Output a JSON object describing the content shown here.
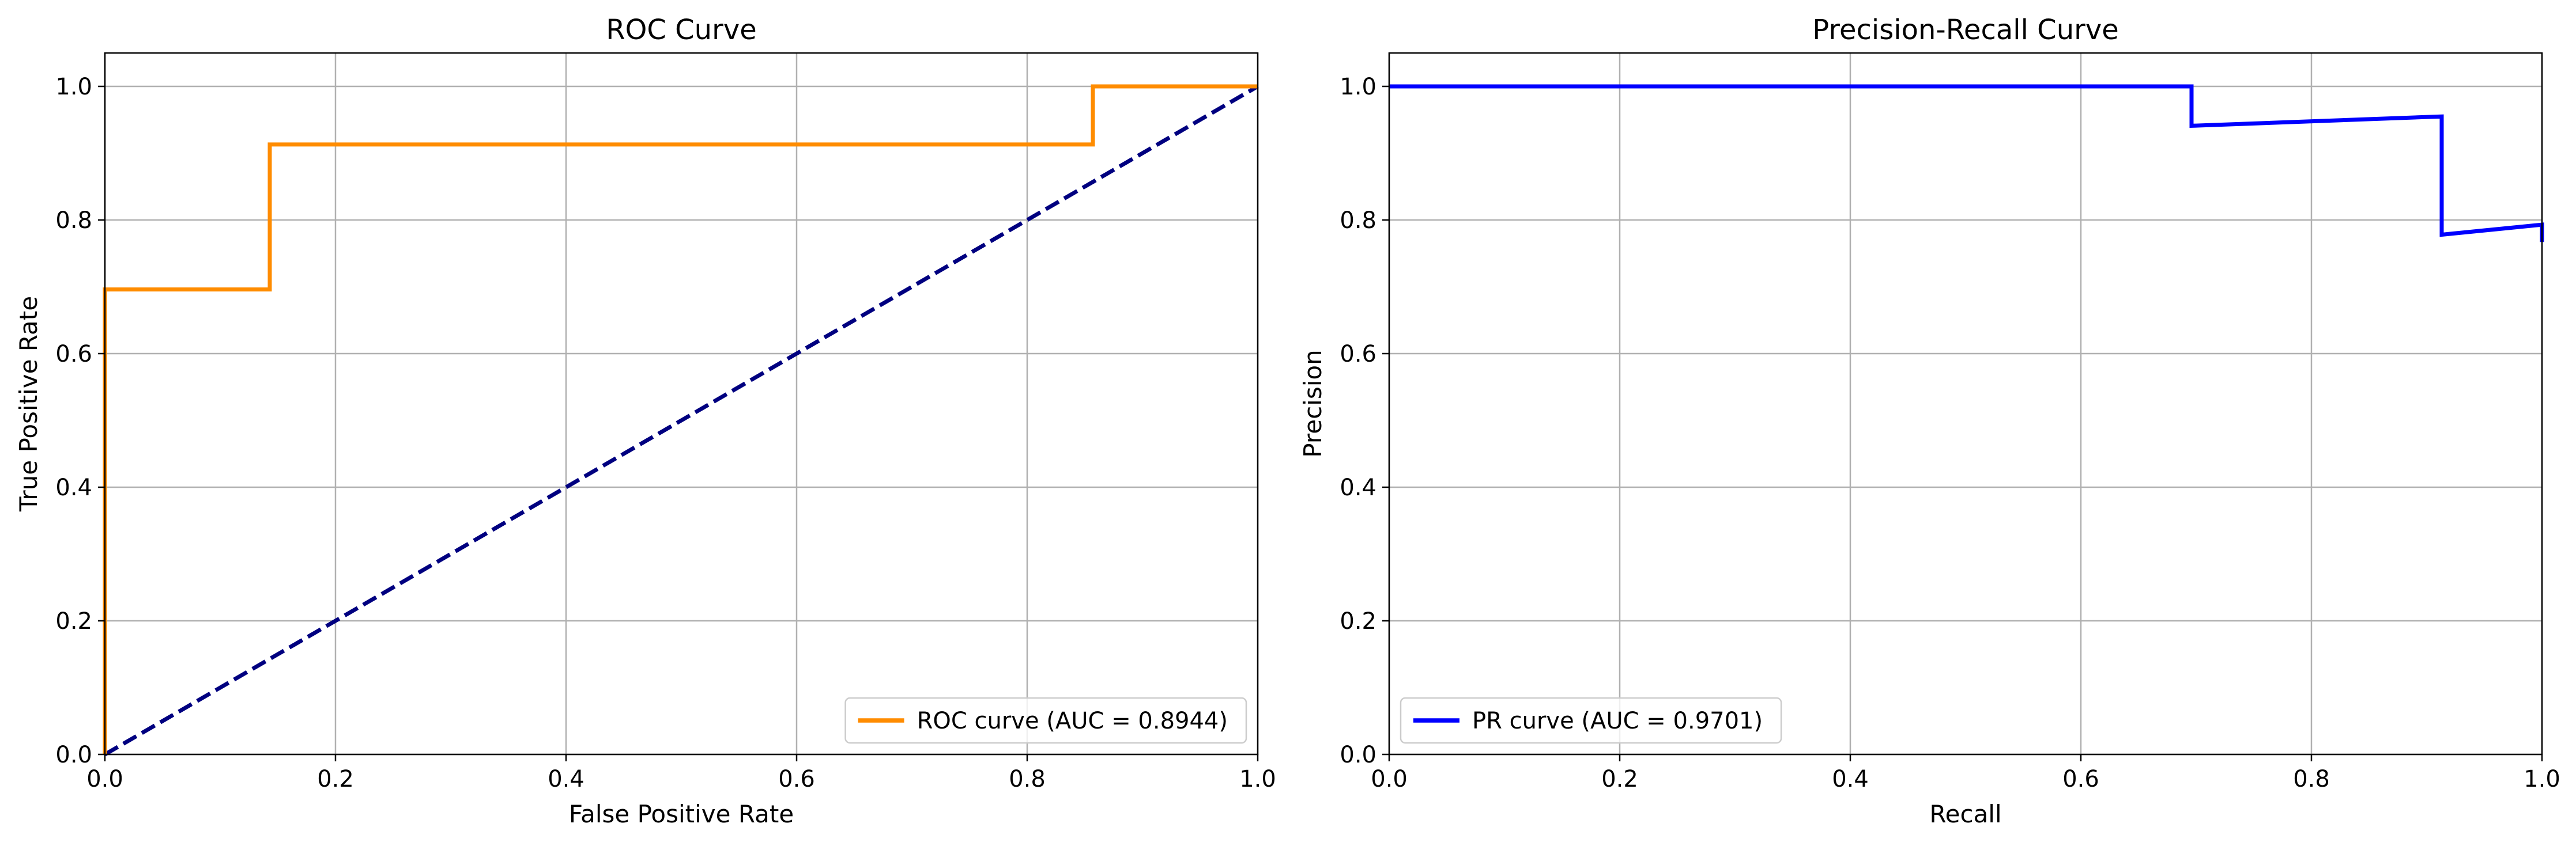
{
  "chart_data": [
    {
      "type": "line",
      "title": "ROC Curve",
      "xlabel": "False Positive Rate",
      "ylabel": "True Positive Rate",
      "xlim": [
        0.0,
        1.0
      ],
      "ylim": [
        0.0,
        1.05
      ],
      "xticks": [
        "0.0",
        "0.2",
        "0.4",
        "0.6",
        "0.8",
        "1.0"
      ],
      "yticks": [
        "0.0",
        "0.2",
        "0.4",
        "0.6",
        "0.8",
        "1.0"
      ],
      "grid": true,
      "legend_position": "lower-right",
      "series": [
        {
          "name": "ROC curve (AUC = 0.8944)",
          "color": "#ff8c00",
          "style": "solid",
          "x": [
            0.0,
            0.0,
            0.0,
            0.143,
            0.143,
            0.857,
            0.857,
            1.0
          ],
          "y": [
            0.0,
            0.696,
            0.696,
            0.696,
            0.913,
            0.913,
            1.0,
            1.0
          ]
        },
        {
          "color": "#000080",
          "style": "dashed",
          "x": [
            0.0,
            1.0
          ],
          "y": [
            0.0,
            1.0
          ]
        }
      ]
    },
    {
      "type": "line",
      "title": "Precision-Recall Curve",
      "xlabel": "Recall",
      "ylabel": "Precision",
      "xlim": [
        0.0,
        1.0
      ],
      "ylim": [
        0.0,
        1.05
      ],
      "xticks": [
        "0.0",
        "0.2",
        "0.4",
        "0.6",
        "0.8",
        "1.0"
      ],
      "yticks": [
        "0.0",
        "0.2",
        "0.4",
        "0.6",
        "0.8",
        "1.0"
      ],
      "grid": true,
      "legend_position": "lower-left",
      "series": [
        {
          "name": "PR curve (AUC = 0.9701)",
          "color": "#0000ff",
          "style": "solid",
          "x": [
            0.0,
            0.696,
            0.696,
            0.913,
            0.913,
            1.0,
            1.0
          ],
          "y": [
            1.0,
            1.0,
            0.941,
            0.955,
            0.778,
            0.793,
            0.767
          ]
        }
      ]
    }
  ]
}
